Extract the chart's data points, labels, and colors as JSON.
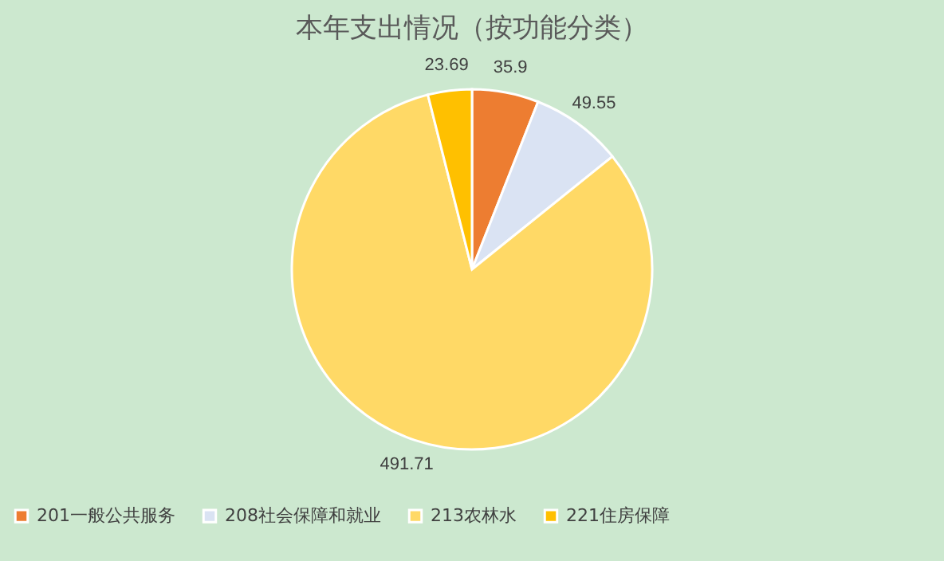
{
  "chart_data": {
    "type": "pie",
    "title": "本年支出情况（按功能分类）",
    "categories": [
      "201一般公共服务",
      "208社会保障和就业",
      "213农林水",
      "221住房保障"
    ],
    "values": [
      35.9,
      49.55,
      491.71,
      23.69
    ],
    "colors": [
      "#ed7d31",
      "#dae3f3",
      "#ffd966",
      "#ffc000"
    ],
    "data_labels": true,
    "legend": "bottom"
  }
}
